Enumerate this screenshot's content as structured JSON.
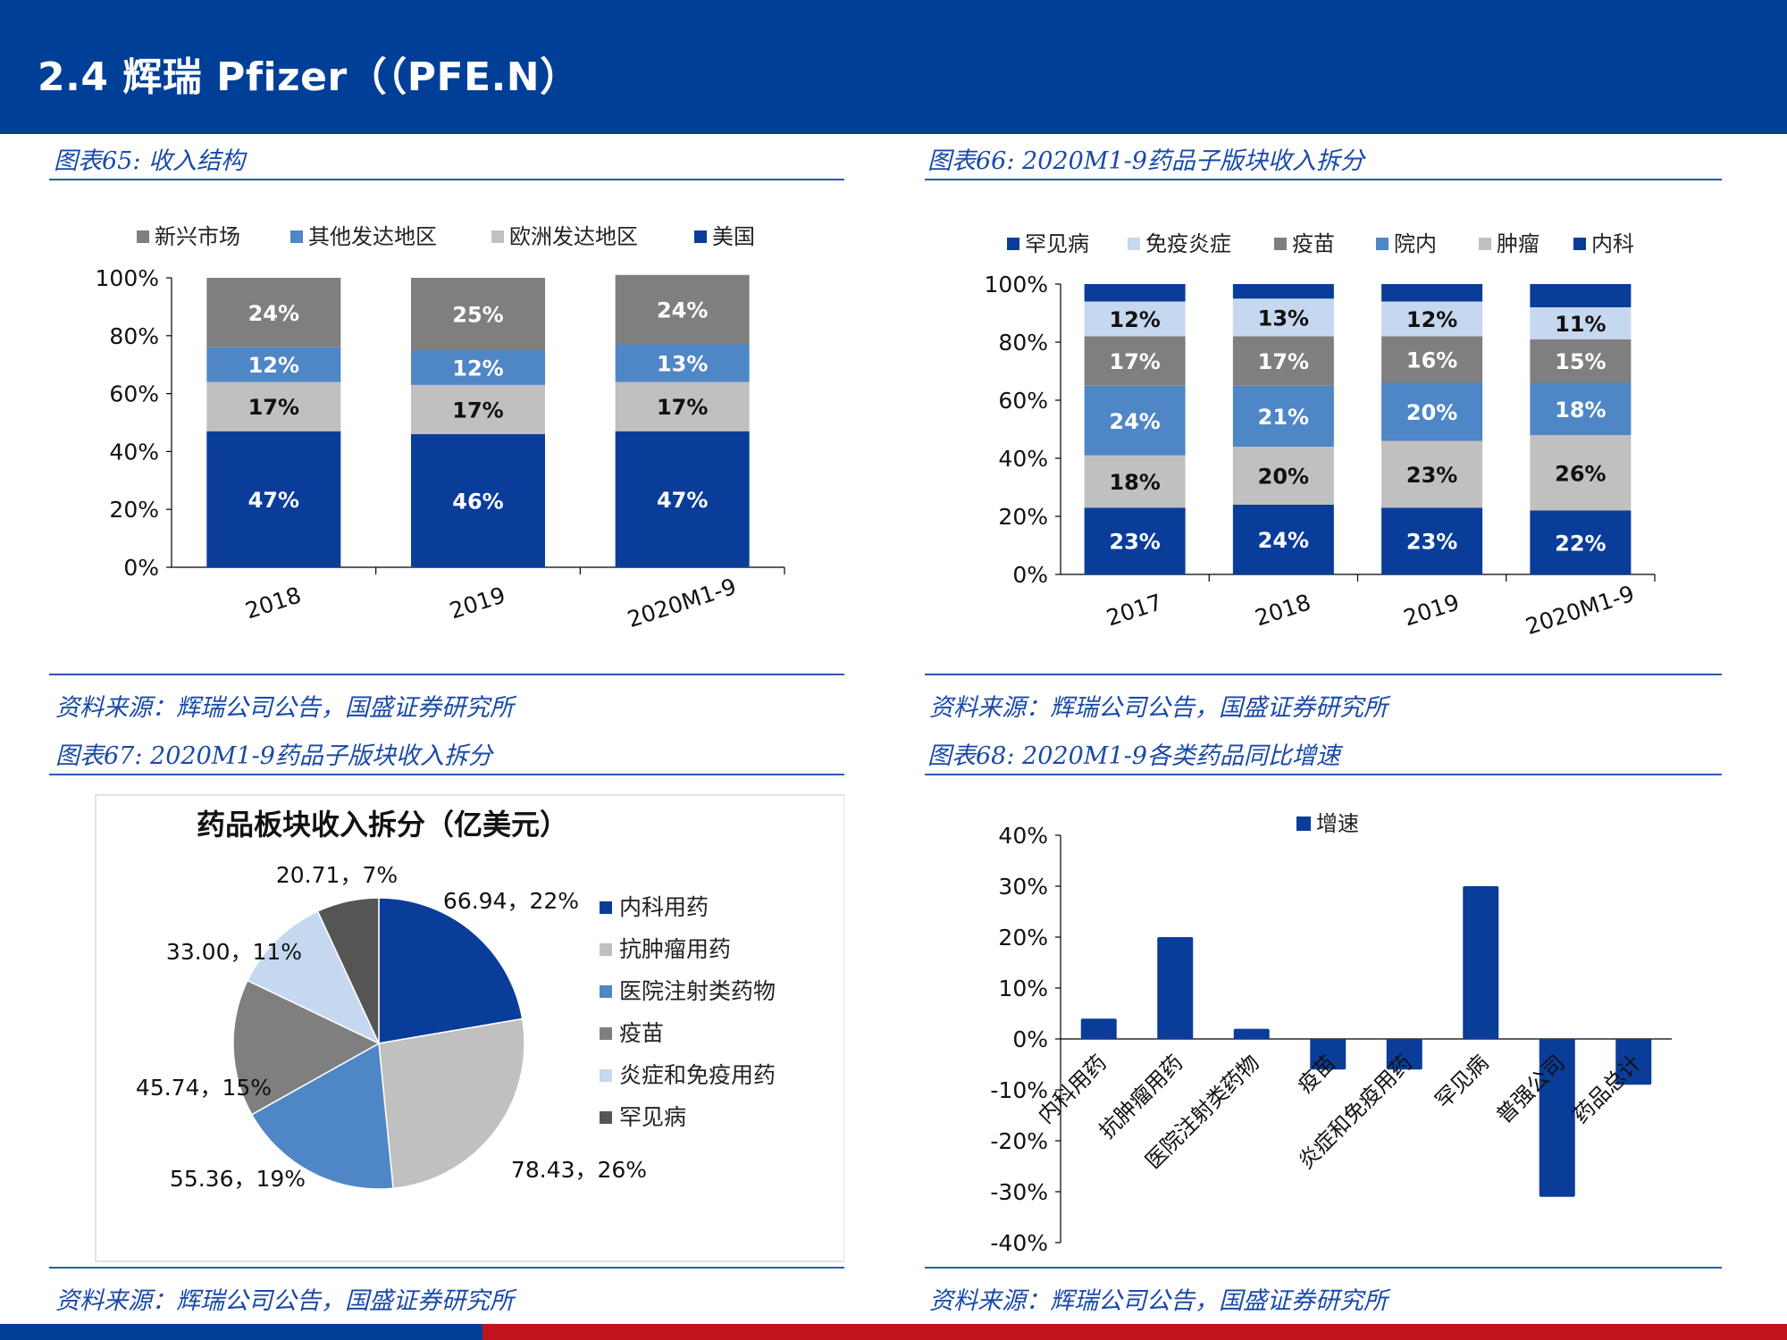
{
  "header": {
    "title": "2.4 辉瑞 Pfizer（（PFE.N）"
  },
  "figures": {
    "fig65": {
      "title": "图表65:  收入结构",
      "source": "资料来源：辉瑞公司公告，国盛证券研究所"
    },
    "fig66": {
      "title": "图表66:  2020M1-9药品子版块收入拆分",
      "source": "资料来源：辉瑞公司公告，国盛证券研究所"
    },
    "fig67": {
      "title": "图表67:  2020M1-9药品子版块收入拆分",
      "source": "资料来源：辉瑞公司公告，国盛证券研究所"
    },
    "fig68": {
      "title": "图表68:  2020M1-9各类药品同比增速",
      "source": "资料来源：辉瑞公司公告，国盛证券研究所"
    }
  },
  "colors": {
    "brand_blue": "#003f98",
    "accent_red": "#c0141c"
  },
  "chart_data": [
    {
      "id": "fig65",
      "type": "bar",
      "stacked": true,
      "categories": [
        "2018",
        "2019",
        "2020M1-9"
      ],
      "series": [
        {
          "name": "美国",
          "values": [
            47,
            46,
            47
          ],
          "color": "#0a3d9a",
          "label_color": "#ffffff"
        },
        {
          "name": "欧洲发达地区",
          "values": [
            17,
            17,
            17
          ],
          "color": "#c0c0c0",
          "label_color": "#111111"
        },
        {
          "name": "其他发达地区",
          "values": [
            12,
            12,
            13
          ],
          "color": "#4f86c6",
          "label_color": "#ffffff"
        },
        {
          "name": "新兴市场",
          "values": [
            24,
            25,
            24
          ],
          "color": "#7f7f7f",
          "label_color": "#ffffff"
        }
      ],
      "legend_order": [
        "新兴市场",
        "其他发达地区",
        "欧洲发达地区",
        "美国"
      ],
      "legend_position": "top",
      "yticks": [
        "0%",
        "20%",
        "40%",
        "60%",
        "80%",
        "100%"
      ],
      "ylim": [
        0,
        100
      ],
      "unit": "%"
    },
    {
      "id": "fig66",
      "type": "bar",
      "stacked": true,
      "categories": [
        "2017",
        "2018",
        "2019",
        "2020M1-9"
      ],
      "series": [
        {
          "name": "内科",
          "values": [
            23,
            24,
            23,
            22
          ],
          "color": "#0a3d9a",
          "label_color": "#ffffff",
          "show_labels": true
        },
        {
          "name": "肿瘤",
          "values": [
            18,
            20,
            23,
            26
          ],
          "color": "#c0c0c0",
          "label_color": "#111111",
          "show_labels": true
        },
        {
          "name": "院内",
          "values": [
            24,
            21,
            20,
            18
          ],
          "color": "#4f86c6",
          "label_color": "#ffffff",
          "show_labels": true
        },
        {
          "name": "疫苗",
          "values": [
            17,
            17,
            16,
            15
          ],
          "color": "#7f7f7f",
          "label_color": "#ffffff",
          "show_labels": true
        },
        {
          "name": "免疫炎症",
          "values": [
            12,
            13,
            12,
            11
          ],
          "color": "#c5d8ef",
          "label_color": "#111111",
          "show_labels": true
        },
        {
          "name": "罕见病",
          "values": [
            6,
            5,
            6,
            8
          ],
          "color": "#0a3d9a",
          "label_color": "#ffffff",
          "show_labels": false
        }
      ],
      "legend_order": [
        "罕见病",
        "免疫炎症",
        "疫苗",
        "院内",
        "肿瘤",
        "内科"
      ],
      "legend_position": "top",
      "yticks": [
        "0%",
        "20%",
        "40%",
        "60%",
        "80%",
        "100%"
      ],
      "ylim": [
        0,
        100
      ],
      "unit": "%"
    },
    {
      "id": "fig67",
      "type": "pie",
      "title": "药品板块收入拆分（亿美元）",
      "slices": [
        {
          "name": "内科用药",
          "value": 66.94,
          "label": "66.94，22%",
          "color": "#0a3d9a"
        },
        {
          "name": "抗肿瘤用药",
          "value": 78.43,
          "label": "78.43，26%",
          "color": "#c0c0c0"
        },
        {
          "name": "医院注射类药物",
          "value": 55.36,
          "label": "55.36，19%",
          "color": "#4f86c6"
        },
        {
          "name": "疫苗",
          "value": 45.74,
          "label": "45.74，15%",
          "color": "#7f7f7f"
        },
        {
          "name": "炎症和免疫用药",
          "value": 33.0,
          "label": "33.00，11%",
          "color": "#c5d8ef"
        },
        {
          "name": "罕见病",
          "value": 20.71,
          "label": "20.71，7%",
          "color": "#555555"
        }
      ],
      "legend_position": "right"
    },
    {
      "id": "fig68",
      "type": "bar",
      "categories": [
        "内科用药",
        "抗肿瘤用药",
        "医院注射类药物",
        "疫苗",
        "炎症和免疫用药",
        "罕见病",
        "普强公司",
        "药品总计"
      ],
      "series": [
        {
          "name": "增速",
          "values": [
            4,
            20,
            2,
            -6,
            -6,
            30,
            -31,
            -9
          ],
          "color": "#0a3d9a"
        }
      ],
      "yticks": [
        "-40%",
        "-30%",
        "-20%",
        "-10%",
        "0%",
        "10%",
        "20%",
        "30%",
        "40%"
      ],
      "ylim": [
        -40,
        40
      ],
      "legend_position": "top",
      "unit": "%"
    }
  ]
}
